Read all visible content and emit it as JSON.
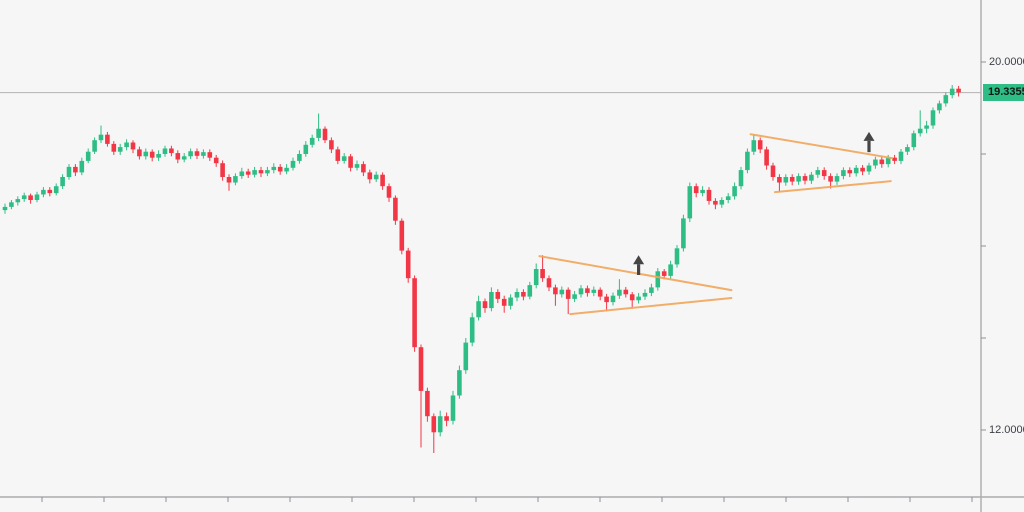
{
  "chart_data": {
    "type": "candlestick",
    "title": "",
    "xlabel": "",
    "ylabel": "",
    "legend": "none",
    "grid": "off",
    "colors": {
      "up": "#2EBD85",
      "down": "#F23645",
      "trendline": "#F2A65A",
      "arrow": "#454545",
      "price_line": "#B2B2B2",
      "axis_line": "#ABABAE",
      "tick_mark": "#8F9096",
      "label_text": "#3C3F45",
      "badge_bg": "#2EBD85",
      "badge_text": "#121A16",
      "background": "#F6F6F7"
    },
    "axis": {
      "top_price": 20.0,
      "bottom_price": 12.0,
      "labels": [
        {
          "price": 20.0,
          "text": "20.0000"
        },
        {
          "price": 12.0,
          "text": "12.0000"
        }
      ],
      "minor_tick_prices": [
        18.0,
        16.0,
        14.0
      ],
      "time_axis_labels": []
    },
    "last_price": 19.3355,
    "price_badge_text": "19.3355",
    "candles": [
      [
        16.78,
        16.92,
        16.7,
        16.85
      ],
      [
        16.85,
        17.0,
        16.8,
        16.95
      ],
      [
        16.95,
        17.08,
        16.88,
        17.02
      ],
      [
        17.02,
        17.16,
        16.96,
        17.1
      ],
      [
        17.1,
        17.14,
        16.92,
        17.0
      ],
      [
        17.0,
        17.18,
        16.95,
        17.12
      ],
      [
        17.12,
        17.28,
        17.06,
        17.22
      ],
      [
        17.22,
        17.28,
        17.08,
        17.15
      ],
      [
        17.15,
        17.36,
        17.1,
        17.3
      ],
      [
        17.3,
        17.56,
        17.24,
        17.5
      ],
      [
        17.5,
        17.78,
        17.44,
        17.72
      ],
      [
        17.72,
        17.78,
        17.52,
        17.6
      ],
      [
        17.6,
        17.92,
        17.54,
        17.85
      ],
      [
        17.85,
        18.12,
        17.8,
        18.05
      ],
      [
        18.05,
        18.36,
        18.0,
        18.3
      ],
      [
        18.3,
        18.62,
        18.24,
        18.42
      ],
      [
        18.42,
        18.48,
        18.16,
        18.22
      ],
      [
        18.22,
        18.28,
        17.98,
        18.05
      ],
      [
        18.05,
        18.22,
        17.98,
        18.15
      ],
      [
        18.15,
        18.32,
        18.08,
        18.25
      ],
      [
        18.25,
        18.3,
        18.02,
        18.1
      ],
      [
        18.1,
        18.16,
        17.88,
        17.95
      ],
      [
        17.95,
        18.12,
        17.88,
        18.05
      ],
      [
        18.05,
        18.1,
        17.84,
        17.92
      ],
      [
        17.92,
        18.08,
        17.85,
        18.0
      ],
      [
        18.0,
        18.18,
        17.94,
        18.12
      ],
      [
        18.12,
        18.18,
        17.95,
        18.02
      ],
      [
        18.02,
        18.08,
        17.8,
        17.88
      ],
      [
        17.88,
        18.02,
        17.82,
        17.95
      ],
      [
        17.95,
        18.12,
        17.89,
        18.06
      ],
      [
        18.06,
        18.12,
        17.89,
        17.96
      ],
      [
        17.96,
        18.1,
        17.9,
        18.04
      ],
      [
        18.04,
        18.1,
        17.85,
        17.92
      ],
      [
        17.92,
        17.98,
        17.72,
        17.8
      ],
      [
        17.8,
        17.86,
        17.42,
        17.5
      ],
      [
        17.5,
        17.56,
        17.2,
        17.38
      ],
      [
        17.38,
        17.58,
        17.32,
        17.52
      ],
      [
        17.52,
        17.7,
        17.46,
        17.62
      ],
      [
        17.62,
        17.68,
        17.48,
        17.55
      ],
      [
        17.55,
        17.72,
        17.49,
        17.65
      ],
      [
        17.65,
        17.72,
        17.5,
        17.58
      ],
      [
        17.58,
        17.72,
        17.52,
        17.65
      ],
      [
        17.65,
        17.8,
        17.58,
        17.72
      ],
      [
        17.72,
        17.78,
        17.55,
        17.62
      ],
      [
        17.62,
        17.78,
        17.56,
        17.7
      ],
      [
        17.7,
        17.92,
        17.64,
        17.85
      ],
      [
        17.85,
        18.08,
        17.79,
        18.0
      ],
      [
        18.0,
        18.28,
        17.94,
        18.2
      ],
      [
        18.2,
        18.42,
        18.14,
        18.35
      ],
      [
        18.35,
        18.88,
        18.28,
        18.55
      ],
      [
        18.55,
        18.6,
        18.24,
        18.3
      ],
      [
        18.3,
        18.36,
        18.02,
        18.1
      ],
      [
        18.1,
        18.16,
        17.78,
        17.85
      ],
      [
        17.85,
        18.02,
        17.79,
        17.95
      ],
      [
        17.95,
        18.0,
        17.62,
        17.7
      ],
      [
        17.7,
        17.86,
        17.64,
        17.78
      ],
      [
        17.78,
        17.84,
        17.52,
        17.6
      ],
      [
        17.6,
        17.66,
        17.36,
        17.45
      ],
      [
        17.45,
        17.62,
        17.39,
        17.55
      ],
      [
        17.55,
        17.6,
        17.22,
        17.3
      ],
      [
        17.3,
        17.36,
        16.96,
        17.05
      ],
      [
        17.05,
        17.1,
        16.46,
        16.55
      ],
      [
        16.55,
        16.6,
        15.82,
        15.9
      ],
      [
        15.9,
        15.96,
        15.2,
        15.3
      ],
      [
        15.3,
        15.36,
        13.7,
        13.8
      ],
      [
        13.8,
        13.86,
        11.62,
        12.85
      ],
      [
        12.85,
        12.92,
        12.18,
        12.3
      ],
      [
        12.3,
        12.36,
        11.5,
        11.95
      ],
      [
        11.95,
        12.42,
        11.86,
        12.3
      ],
      [
        12.3,
        12.38,
        12.08,
        12.2
      ],
      [
        12.2,
        12.85,
        12.12,
        12.75
      ],
      [
        12.75,
        13.4,
        12.68,
        13.3
      ],
      [
        13.3,
        14.0,
        13.22,
        13.9
      ],
      [
        13.9,
        14.55,
        13.82,
        14.45
      ],
      [
        14.45,
        14.92,
        14.38,
        14.8
      ],
      [
        14.8,
        14.86,
        14.55,
        14.65
      ],
      [
        14.65,
        15.1,
        14.58,
        15.0
      ],
      [
        15.0,
        15.06,
        14.76,
        14.85
      ],
      [
        14.85,
        14.92,
        14.55,
        14.7
      ],
      [
        14.7,
        14.95,
        14.62,
        14.88
      ],
      [
        14.88,
        15.08,
        14.8,
        15.0
      ],
      [
        15.0,
        15.06,
        14.82,
        14.9
      ],
      [
        14.9,
        15.22,
        14.84,
        15.15
      ],
      [
        15.15,
        15.62,
        15.08,
        15.5
      ],
      [
        15.5,
        15.8,
        15.22,
        15.3
      ],
      [
        15.3,
        15.36,
        15.02,
        15.1
      ],
      [
        15.1,
        15.16,
        14.7,
        14.95
      ],
      [
        14.95,
        15.12,
        14.88,
        15.05
      ],
      [
        15.05,
        15.1,
        14.52,
        14.85
      ],
      [
        14.85,
        15.02,
        14.78,
        14.95
      ],
      [
        14.95,
        15.15,
        14.88,
        15.08
      ],
      [
        15.08,
        15.14,
        14.9,
        14.98
      ],
      [
        14.98,
        15.12,
        14.91,
        15.05
      ],
      [
        15.05,
        15.1,
        14.82,
        14.9
      ],
      [
        14.9,
        14.96,
        14.58,
        14.78
      ],
      [
        14.78,
        14.99,
        14.71,
        14.92
      ],
      [
        14.92,
        15.28,
        14.85,
        15.05
      ],
      [
        15.05,
        15.11,
        14.88,
        14.95
      ],
      [
        14.95,
        15.0,
        14.64,
        14.82
      ],
      [
        14.82,
        14.98,
        14.75,
        14.9
      ],
      [
        14.9,
        15.06,
        14.83,
        14.98
      ],
      [
        14.98,
        15.18,
        14.91,
        15.1
      ],
      [
        15.1,
        15.52,
        15.03,
        15.45
      ],
      [
        15.45,
        15.5,
        15.28,
        15.35
      ],
      [
        15.35,
        15.68,
        15.28,
        15.6
      ],
      [
        15.6,
        16.02,
        15.53,
        15.95
      ],
      [
        15.95,
        16.68,
        15.88,
        16.6
      ],
      [
        16.6,
        17.38,
        16.52,
        17.3
      ],
      [
        17.3,
        17.36,
        17.06,
        17.15
      ],
      [
        17.15,
        17.3,
        17.08,
        17.22
      ],
      [
        17.22,
        17.28,
        16.9,
        16.98
      ],
      [
        16.98,
        17.04,
        16.8,
        16.9
      ],
      [
        16.9,
        17.06,
        16.83,
        17.0
      ],
      [
        17.0,
        17.15,
        16.93,
        17.08
      ],
      [
        17.08,
        17.38,
        17.01,
        17.3
      ],
      [
        17.3,
        17.72,
        17.23,
        17.65
      ],
      [
        17.65,
        18.12,
        17.58,
        18.05
      ],
      [
        18.05,
        18.42,
        17.98,
        18.3
      ],
      [
        18.3,
        18.36,
        18.02,
        18.1
      ],
      [
        18.1,
        18.16,
        17.66,
        17.75
      ],
      [
        17.75,
        17.81,
        17.42,
        17.5
      ],
      [
        17.5,
        17.56,
        17.18,
        17.38
      ],
      [
        17.38,
        17.56,
        17.31,
        17.5
      ],
      [
        17.5,
        17.56,
        17.32,
        17.4
      ],
      [
        17.4,
        17.58,
        17.33,
        17.52
      ],
      [
        17.52,
        17.58,
        17.34,
        17.42
      ],
      [
        17.42,
        17.61,
        17.35,
        17.55
      ],
      [
        17.55,
        17.72,
        17.48,
        17.65
      ],
      [
        17.65,
        17.71,
        17.44,
        17.52
      ],
      [
        17.52,
        17.58,
        17.25,
        17.4
      ],
      [
        17.4,
        17.58,
        17.33,
        17.52
      ],
      [
        17.52,
        17.71,
        17.45,
        17.65
      ],
      [
        17.65,
        17.71,
        17.5,
        17.58
      ],
      [
        17.58,
        17.76,
        17.51,
        17.7
      ],
      [
        17.7,
        17.76,
        17.54,
        17.62
      ],
      [
        17.62,
        17.81,
        17.55,
        17.75
      ],
      [
        17.75,
        17.94,
        17.68,
        17.88
      ],
      [
        17.88,
        17.94,
        17.7,
        17.78
      ],
      [
        17.78,
        17.98,
        17.71,
        17.92
      ],
      [
        17.92,
        17.98,
        17.78,
        17.85
      ],
      [
        17.85,
        18.11,
        17.78,
        18.05
      ],
      [
        18.05,
        18.21,
        17.98,
        18.15
      ],
      [
        18.15,
        18.51,
        18.08,
        18.45
      ],
      [
        18.45,
        18.95,
        18.38,
        18.55
      ],
      [
        18.55,
        18.72,
        18.45,
        18.62
      ],
      [
        18.62,
        19.01,
        18.55,
        18.95
      ],
      [
        18.95,
        19.16,
        18.88,
        19.1
      ],
      [
        19.1,
        19.34,
        19.03,
        19.28
      ],
      [
        19.28,
        19.5,
        19.21,
        19.42
      ],
      [
        19.42,
        19.48,
        19.25,
        19.34
      ]
    ],
    "trendlines": [
      {
        "name": "pennant-1-upper",
        "from": {
          "index": 83.5,
          "price": 15.78
        },
        "to": {
          "index": 113.5,
          "price": 15.04
        }
      },
      {
        "name": "pennant-1-lower",
        "from": {
          "index": 88.3,
          "price": 14.52
        },
        "to": {
          "index": 113.5,
          "price": 14.87
        }
      },
      {
        "name": "pennant-2-upper",
        "from": {
          "index": 116.5,
          "price": 18.43
        },
        "to": {
          "index": 138.6,
          "price": 17.91
        }
      },
      {
        "name": "pennant-2-lower",
        "from": {
          "index": 120.3,
          "price": 17.17
        },
        "to": {
          "index": 138.4,
          "price": 17.41
        }
      }
    ],
    "arrows": [
      {
        "name": "breakout-arrow-1",
        "index": 99,
        "tip_price": 15.8,
        "base_price": 15.37
      },
      {
        "name": "breakout-arrow-2",
        "index": 135,
        "tip_price": 18.48,
        "base_price": 18.04
      }
    ]
  }
}
